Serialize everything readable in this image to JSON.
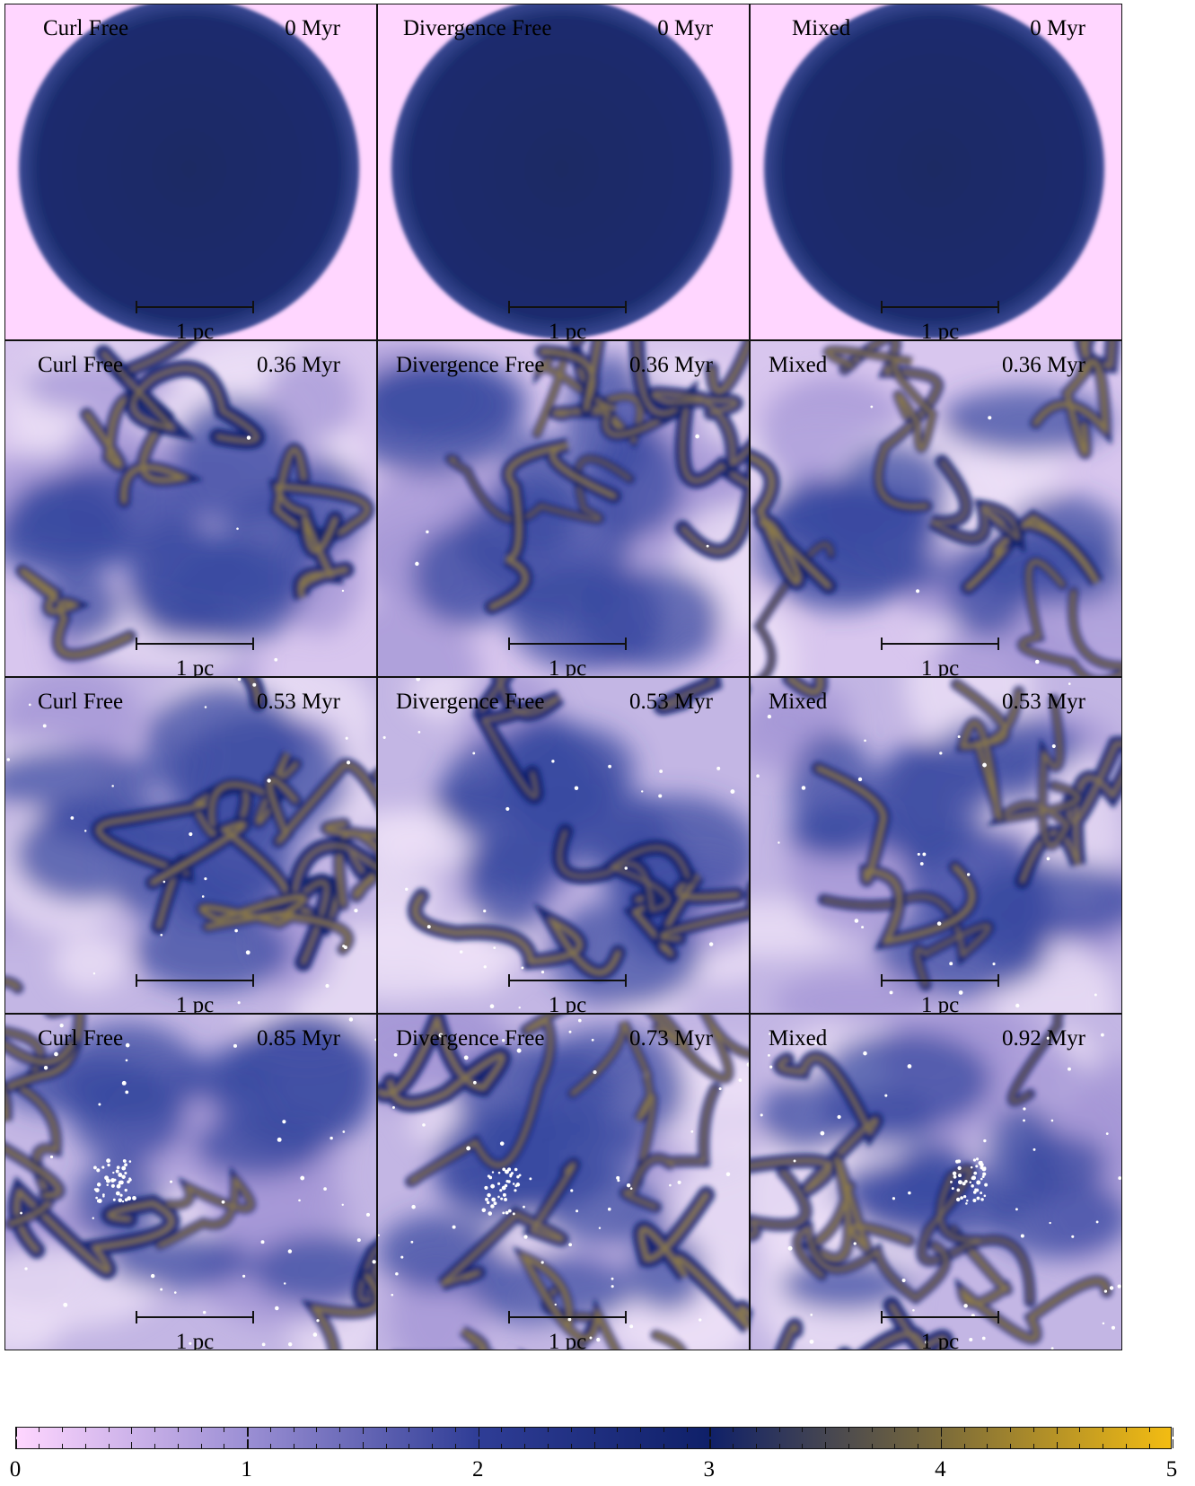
{
  "columns": [
    "Curl Free",
    "Divergence Free",
    "Mixed"
  ],
  "rows": [
    [
      "0 Myr",
      "0 Myr",
      "0 Myr"
    ],
    [
      "0.36 Myr",
      "0.36 Myr",
      "0.36 Myr"
    ],
    [
      "0.53 Myr",
      "0.53 Myr",
      "0.53 Myr"
    ],
    [
      "0.85 Myr",
      "0.73 Myr",
      "0.92 Myr"
    ]
  ],
  "scalebar_label": "1 pc",
  "colorbar": {
    "ticks": [
      "0",
      "1",
      "2",
      "3",
      "4",
      "5"
    ],
    "colors": [
      "#ffd6ff",
      "#9b8fd4",
      "#2f3d96",
      "#0f2069",
      "#7a6a3a",
      "#f3bc12"
    ]
  },
  "colors": {
    "background_pink": "#ffd6ff",
    "disk_blue": "#1b2c6e",
    "filament_gold": "#b89a3a",
    "star": "#ffffff"
  }
}
